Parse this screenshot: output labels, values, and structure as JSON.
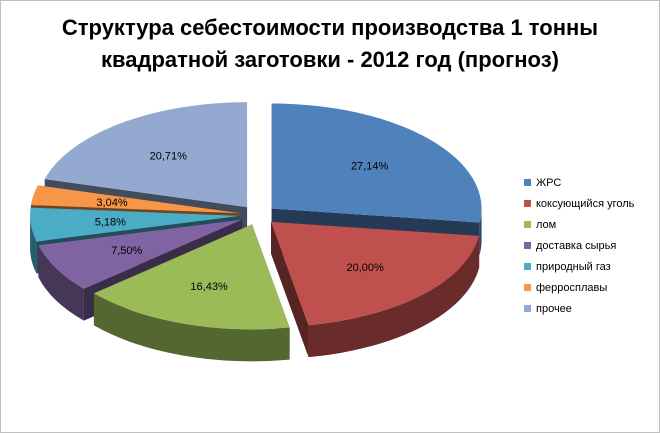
{
  "chart_data": {
    "type": "pie",
    "title_line1": "Структура себестоимости производства 1 тонны",
    "title_line2": "квадратной заготовки - 2012 год (прогноз)",
    "categories": [
      "ЖРС",
      "коксующийся уголь",
      "лом",
      "доставка сырья",
      "природный газ",
      "ферросплавы",
      "прочее"
    ],
    "values": [
      27.14,
      20.0,
      16.43,
      7.5,
      5.18,
      3.04,
      20.71
    ],
    "labels": [
      "27,14%",
      "20,00%",
      "16,43%",
      "7,50%",
      "5,18%",
      "3,04%",
      "20,71%"
    ],
    "colors": [
      "#4F81BD",
      "#C0504D",
      "#9BBB59",
      "#8064A2",
      "#4BACC6",
      "#F79646",
      "#93A9CF"
    ],
    "exploded": true,
    "legend_position": "right"
  }
}
